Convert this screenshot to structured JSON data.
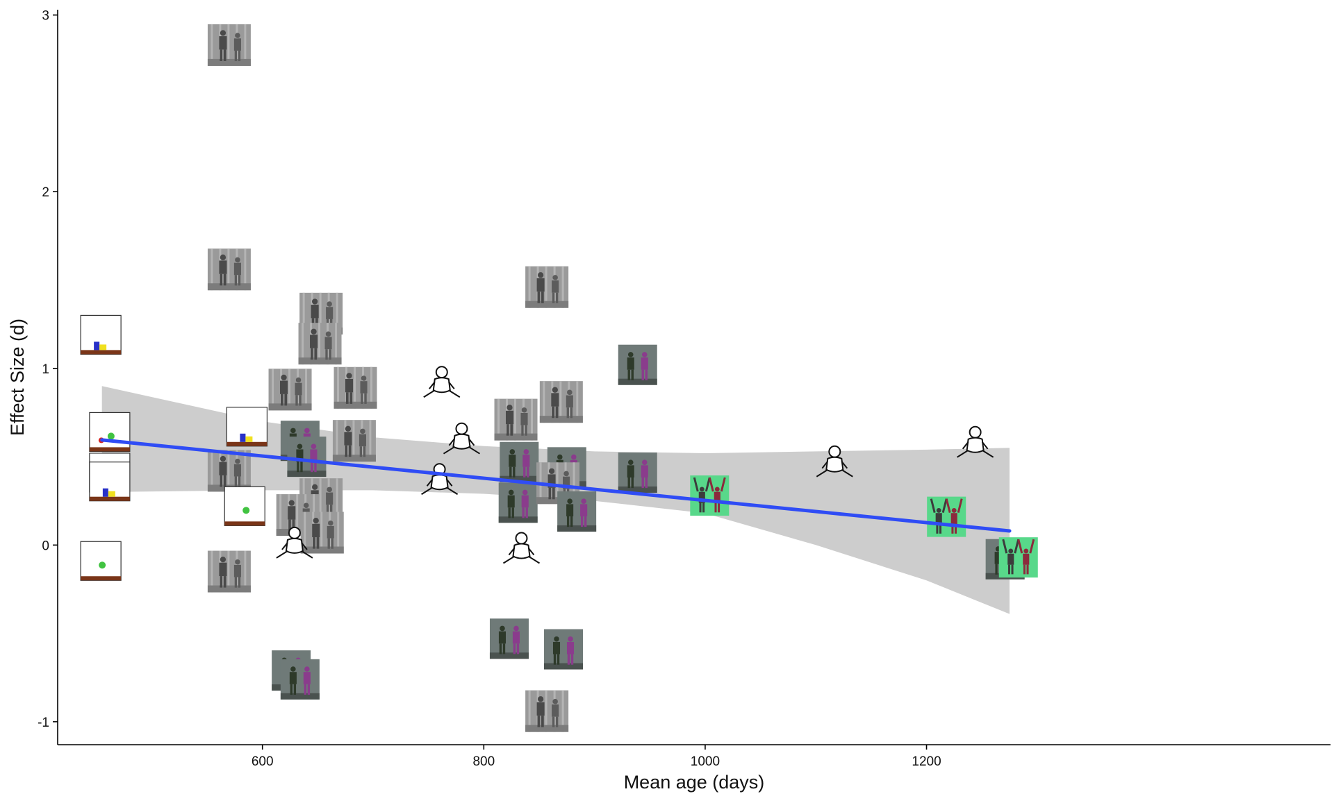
{
  "chart_data": {
    "type": "scatter",
    "title": "",
    "xlabel": "Mean age (days)",
    "ylabel": "Effect Size (d)",
    "xlim": [
      415,
      1565
    ],
    "ylim": [
      -1.13,
      3.03
    ],
    "x_ticks": [
      600,
      800,
      1000,
      1200
    ],
    "y_ticks": [
      -1,
      0,
      1,
      2,
      3
    ],
    "grid": false,
    "legend": "none",
    "marker_kinds": [
      "photo-gray",
      "photo-color",
      "photo-green",
      "box-ball",
      "box-blocks",
      "line-drawing"
    ],
    "points": [
      {
        "x": 454,
        "y": 1.19,
        "kind": "box-blocks"
      },
      {
        "x": 462,
        "y": 0.64,
        "kind": "box-ball"
      },
      {
        "x": 462,
        "y": 0.41,
        "kind": "box-blocks"
      },
      {
        "x": 462,
        "y": 0.36,
        "kind": "box-blocks"
      },
      {
        "x": 454,
        "y": -0.09,
        "kind": "box-ball"
      },
      {
        "x": 570,
        "y": 2.83,
        "kind": "photo-gray"
      },
      {
        "x": 570,
        "y": 1.56,
        "kind": "photo-gray"
      },
      {
        "x": 570,
        "y": 0.42,
        "kind": "photo-gray"
      },
      {
        "x": 570,
        "y": -0.15,
        "kind": "photo-gray"
      },
      {
        "x": 586,
        "y": 0.67,
        "kind": "box-blocks"
      },
      {
        "x": 584,
        "y": 0.22,
        "kind": "box-ball"
      },
      {
        "x": 625,
        "y": 0.88,
        "kind": "photo-gray"
      },
      {
        "x": 653,
        "y": 1.31,
        "kind": "photo-gray"
      },
      {
        "x": 652,
        "y": 1.14,
        "kind": "photo-gray"
      },
      {
        "x": 634,
        "y": 0.59,
        "kind": "photo-color"
      },
      {
        "x": 640,
        "y": 0.5,
        "kind": "photo-color"
      },
      {
        "x": 653,
        "y": 0.26,
        "kind": "photo-gray"
      },
      {
        "x": 632,
        "y": 0.17,
        "kind": "photo-gray"
      },
      {
        "x": 654,
        "y": 0.07,
        "kind": "photo-gray"
      },
      {
        "x": 629,
        "y": -0.01,
        "kind": "line-drawing"
      },
      {
        "x": 626,
        "y": -0.71,
        "kind": "photo-color"
      },
      {
        "x": 634,
        "y": -0.76,
        "kind": "photo-color"
      },
      {
        "x": 684,
        "y": 0.89,
        "kind": "photo-gray"
      },
      {
        "x": 683,
        "y": 0.59,
        "kind": "photo-gray"
      },
      {
        "x": 762,
        "y": 0.9,
        "kind": "line-drawing"
      },
      {
        "x": 760,
        "y": 0.35,
        "kind": "line-drawing"
      },
      {
        "x": 780,
        "y": 0.58,
        "kind": "line-drawing"
      },
      {
        "x": 829,
        "y": 0.71,
        "kind": "photo-gray"
      },
      {
        "x": 832,
        "y": 0.47,
        "kind": "photo-color"
      },
      {
        "x": 831,
        "y": 0.24,
        "kind": "photo-color"
      },
      {
        "x": 834,
        "y": -0.04,
        "kind": "line-drawing"
      },
      {
        "x": 823,
        "y": -0.53,
        "kind": "photo-color"
      },
      {
        "x": 857,
        "y": 1.46,
        "kind": "photo-gray"
      },
      {
        "x": 870,
        "y": 0.81,
        "kind": "photo-gray"
      },
      {
        "x": 875,
        "y": 0.44,
        "kind": "photo-color"
      },
      {
        "x": 867,
        "y": 0.35,
        "kind": "photo-gray"
      },
      {
        "x": 884,
        "y": 0.19,
        "kind": "photo-color"
      },
      {
        "x": 872,
        "y": -0.59,
        "kind": "photo-color"
      },
      {
        "x": 857,
        "y": -0.94,
        "kind": "photo-gray"
      },
      {
        "x": 939,
        "y": 1.02,
        "kind": "photo-color"
      },
      {
        "x": 939,
        "y": 0.41,
        "kind": "photo-color"
      },
      {
        "x": 1004,
        "y": 0.28,
        "kind": "photo-green"
      },
      {
        "x": 1117,
        "y": 0.45,
        "kind": "line-drawing"
      },
      {
        "x": 1244,
        "y": 0.56,
        "kind": "line-drawing"
      },
      {
        "x": 1218,
        "y": 0.16,
        "kind": "photo-green"
      },
      {
        "x": 1271,
        "y": -0.08,
        "kind": "photo-color"
      },
      {
        "x": 1283,
        "y": -0.07,
        "kind": "photo-green"
      }
    ],
    "fit": {
      "method": "linear regression",
      "color": "#2f4cf5",
      "x": [
        455,
        1275
      ],
      "y": [
        0.595,
        0.08
      ]
    },
    "confidence_band": {
      "color": "#cdcdcd",
      "x": [
        455,
        600,
        700,
        800,
        900,
        1000,
        1100,
        1200,
        1275
      ],
      "upper": [
        0.9,
        0.7,
        0.61,
        0.56,
        0.53,
        0.52,
        0.53,
        0.54,
        0.55
      ],
      "lower": [
        0.3,
        0.31,
        0.31,
        0.29,
        0.25,
        0.18,
        0.0,
        -0.2,
        -0.39
      ]
    },
    "colors": {
      "axis": "#000000",
      "tick_label": "#333333",
      "photo_gray_bg": "#9a9a9a",
      "photo_gray_figure": "#4a4a4a",
      "photo_color_bg": "#6f7a78",
      "photo_green_bg": "#58d88a",
      "box_floor": "#7a3518",
      "ball_green": "#41c341",
      "ball_red": "#d42424",
      "block_blue": "#2830c8",
      "block_yellow": "#f0e020"
    }
  }
}
